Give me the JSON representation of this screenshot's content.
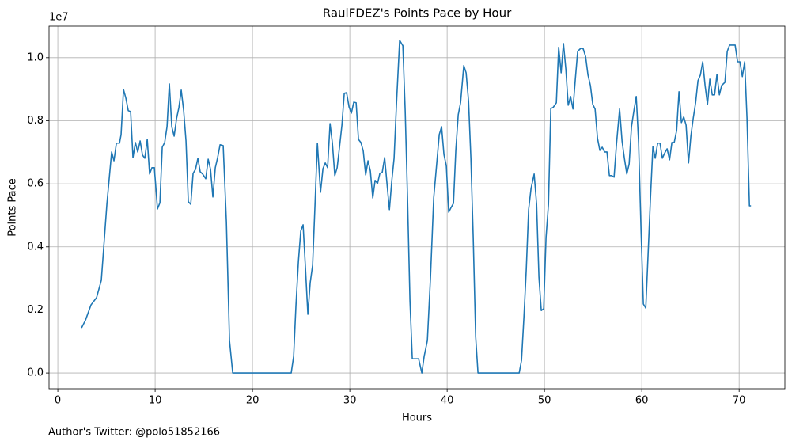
{
  "chart_data": {
    "type": "line",
    "title": "RaulFDEZ's Points Pace by Hour",
    "x_label": "Hours",
    "y_label": "Points Pace",
    "y_offset_label": "1e7",
    "footnote": "Author's Twitter: @polo51852166",
    "color": "#1f77b4",
    "grid": true,
    "xlim": [
      -0.9,
      74.7
    ],
    "ylim": [
      -500000,
      11000000
    ],
    "xticks": [
      0,
      10,
      20,
      30,
      40,
      50,
      60,
      70
    ],
    "yticks": [
      {
        "value": 0,
        "label": "0.0"
      },
      {
        "value": 2000000,
        "label": "0.2"
      },
      {
        "value": 4000000,
        "label": "0.4"
      },
      {
        "value": 6000000,
        "label": "0.6"
      },
      {
        "value": 8000000,
        "label": "0.8"
      },
      {
        "value": 10000000,
        "label": "1.0"
      }
    ],
    "x": [
      2.44,
      2.85,
      3.41,
      3.98,
      4.47,
      5.04,
      5.53,
      5.77,
      6.02,
      6.34,
      6.5,
      6.75,
      6.99,
      7.24,
      7.48,
      7.72,
      7.97,
      8.21,
      8.46,
      8.7,
      8.94,
      9.19,
      9.43,
      9.67,
      9.92,
      10.24,
      10.49,
      10.73,
      10.98,
      11.22,
      11.46,
      11.71,
      11.95,
      12.2,
      12.44,
      12.68,
      12.93,
      13.17,
      13.41,
      13.66,
      13.9,
      14.15,
      14.39,
      14.63,
      14.88,
      15.2,
      15.45,
      15.69,
      15.93,
      16.18,
      16.42,
      16.67,
      16.99,
      17.32,
      17.64,
      17.97,
      19,
      20,
      21,
      22,
      23,
      23.98,
      24.23,
      24.47,
      24.72,
      24.96,
      25.2,
      25.45,
      25.69,
      25.93,
      26.18,
      26.42,
      26.67,
      26.99,
      27.24,
      27.48,
      27.72,
      27.97,
      28.21,
      28.46,
      28.7,
      28.94,
      29.19,
      29.43,
      29.67,
      29.92,
      30.16,
      30.41,
      30.65,
      30.89,
      31.14,
      31.38,
      31.63,
      31.87,
      32.11,
      32.36,
      32.6,
      32.85,
      33.09,
      33.33,
      33.58,
      33.82,
      34.07,
      34.31,
      34.55,
      34.8,
      35.12,
      35.45,
      35.69,
      35.93,
      36.18,
      36.42,
      36.75,
      37.07,
      37.4,
      37.64,
      37.97,
      38.29,
      38.62,
      38.94,
      39.19,
      39.43,
      39.67,
      39.92,
      40.16,
      40.41,
      40.65,
      40.89,
      41.14,
      41.38,
      41.71,
      41.95,
      42.2,
      42.44,
      42.68,
      42.93,
      43.17,
      44,
      45,
      46,
      47,
      47.4,
      47.64,
      47.89,
      48.13,
      48.37,
      48.62,
      48.94,
      49.19,
      49.43,
      49.67,
      49.92,
      50.16,
      50.41,
      50.65,
      50.89,
      51.22,
      51.46,
      51.71,
      51.95,
      52.2,
      52.44,
      52.68,
      52.93,
      53.17,
      53.41,
      53.74,
      53.98,
      54.23,
      54.47,
      54.72,
      54.96,
      55.2,
      55.45,
      55.69,
      55.93,
      56.18,
      56.42,
      56.67,
      56.91,
      57.15,
      57.4,
      57.72,
      57.97,
      58.21,
      58.46,
      58.7,
      58.94,
      59.19,
      59.43,
      59.67,
      59.92,
      60.16,
      60.41,
      60.65,
      60.89,
      61.14,
      61.38,
      61.63,
      61.87,
      62.11,
      62.36,
      62.6,
      62.85,
      63.09,
      63.33,
      63.58,
      63.82,
      64.07,
      64.31,
      64.55,
      64.8,
      65.04,
      65.28,
      65.53,
      65.77,
      66.02,
      66.26,
      66.5,
      66.75,
      66.99,
      67.24,
      67.48,
      67.72,
      67.97,
      68.21,
      68.54,
      68.78,
      69.02,
      69.35,
      69.59,
      69.84,
      70.08,
      70.33,
      70.57,
      70.81,
      71.06,
      71.22
    ],
    "values": [
      1430000,
      1680000,
      2160000,
      2390000,
      2940000,
      5350000,
      7010000,
      6730000,
      7290000,
      7290000,
      7560000,
      8990000,
      8720000,
      8320000,
      8290000,
      6830000,
      7310000,
      7010000,
      7360000,
      6910000,
      6810000,
      7410000,
      6310000,
      6510000,
      6510000,
      5200000,
      5400000,
      7160000,
      7310000,
      7810000,
      9170000,
      7810000,
      7510000,
      8070000,
      8420000,
      8970000,
      8320000,
      7360000,
      5430000,
      5350000,
      6330000,
      6460000,
      6810000,
      6380000,
      6310000,
      6160000,
      6780000,
      6460000,
      5580000,
      6510000,
      6830000,
      7240000,
      7210000,
      4800000,
      1030000,
      0,
      0,
      0,
      0,
      0,
      0,
      0,
      530000,
      2160000,
      3540000,
      4500000,
      4700000,
      3290000,
      1860000,
      2860000,
      3420000,
      5300000,
      7290000,
      5730000,
      6480000,
      6660000,
      6510000,
      7910000,
      7290000,
      6260000,
      6510000,
      7160000,
      7860000,
      8870000,
      8890000,
      8440000,
      8240000,
      8590000,
      8570000,
      7410000,
      7310000,
      7040000,
      6280000,
      6730000,
      6410000,
      5550000,
      6110000,
      6010000,
      6330000,
      6360000,
      6830000,
      6010000,
      5180000,
      6080000,
      6810000,
      8570000,
      10550000,
      10380000,
      8320000,
      5550000,
      2290000,
      450000,
      450000,
      450000,
      0,
      530000,
      1030000,
      3040000,
      5550000,
      6680000,
      7560000,
      7810000,
      6930000,
      6560000,
      5100000,
      5250000,
      5380000,
      7060000,
      8190000,
      8570000,
      9750000,
      9520000,
      8620000,
      6810000,
      4300000,
      1160000,
      0,
      0,
      0,
      0,
      0,
      0,
      400000,
      1780000,
      3290000,
      5180000,
      5850000,
      6310000,
      5350000,
      3040000,
      1980000,
      2040000,
      4300000,
      5350000,
      8390000,
      8420000,
      8570000,
      10330000,
      9520000,
      10450000,
      9620000,
      8490000,
      8770000,
      8370000,
      9320000,
      10200000,
      10300000,
      10280000,
      10030000,
      9450000,
      9120000,
      8520000,
      8370000,
      7440000,
      7060000,
      7160000,
      7010000,
      7010000,
      6260000,
      6260000,
      6210000,
      7260000,
      8370000,
      7360000,
      6810000,
      6310000,
      6630000,
      7810000,
      8320000,
      8770000,
      7310000,
      4550000,
      2190000,
      2060000,
      3790000,
      5550000,
      7190000,
      6810000,
      7290000,
      7290000,
      6810000,
      6980000,
      7110000,
      6760000,
      7310000,
      7310000,
      7690000,
      8920000,
      7940000,
      8120000,
      7860000,
      6660000,
      7510000,
      8070000,
      8570000,
      9270000,
      9450000,
      9870000,
      9120000,
      8520000,
      9320000,
      8820000,
      8820000,
      9470000,
      8820000,
      9120000,
      9220000,
      10200000,
      10400000,
      10400000,
      10400000,
      9870000,
      9870000,
      9400000,
      9870000,
      8070000,
      5300000,
      5300000
    ]
  }
}
